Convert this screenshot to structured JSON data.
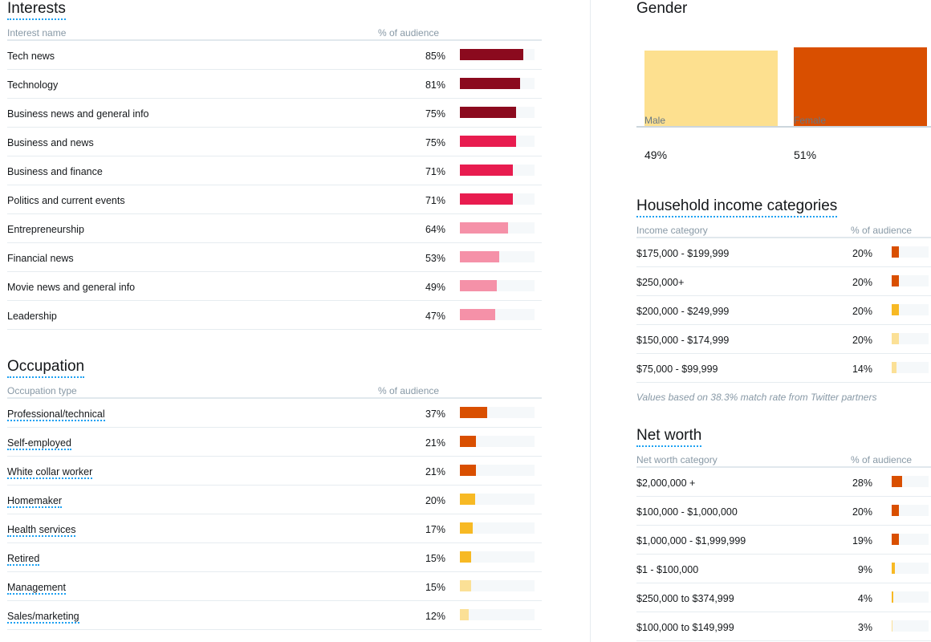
{
  "interests": {
    "title": "Interests",
    "col_name": "Interest name",
    "col_pct": "% of audience",
    "rows": [
      {
        "name": "Tech news",
        "pct_label": "85%",
        "value": 85,
        "color": "#8b0a1e"
      },
      {
        "name": "Technology",
        "pct_label": "81%",
        "value": 81,
        "color": "#8b0a1e"
      },
      {
        "name": "Business news and general info",
        "pct_label": "75%",
        "value": 75,
        "color": "#8b0a1e"
      },
      {
        "name": "Business and news",
        "pct_label": "75%",
        "value": 75,
        "color": "#e81c4f"
      },
      {
        "name": "Business and finance",
        "pct_label": "71%",
        "value": 71,
        "color": "#e81c4f"
      },
      {
        "name": "Politics and current events",
        "pct_label": "71%",
        "value": 71,
        "color": "#e81c4f"
      },
      {
        "name": "Entrepreneurship",
        "pct_label": "64%",
        "value": 64,
        "color": "#f591a8"
      },
      {
        "name": "Financial news",
        "pct_label": "53%",
        "value": 53,
        "color": "#f591a8"
      },
      {
        "name": "Movie news and general info",
        "pct_label": "49%",
        "value": 49,
        "color": "#f591a8"
      },
      {
        "name": "Leadership",
        "pct_label": "47%",
        "value": 47,
        "color": "#f591a8"
      }
    ]
  },
  "occupation": {
    "title": "Occupation",
    "col_name": "Occupation type",
    "col_pct": "% of audience",
    "rows": [
      {
        "name": "Professional/technical",
        "pct_label": "37%",
        "value": 37,
        "color": "#d94f00"
      },
      {
        "name": "Self-employed",
        "pct_label": "21%",
        "value": 21,
        "color": "#d94f00"
      },
      {
        "name": "White collar worker",
        "pct_label": "21%",
        "value": 21,
        "color": "#d94f00"
      },
      {
        "name": "Homemaker",
        "pct_label": "20%",
        "value": 20,
        "color": "#f7b924"
      },
      {
        "name": "Health services",
        "pct_label": "17%",
        "value": 17,
        "color": "#f7b924"
      },
      {
        "name": "Retired",
        "pct_label": "15%",
        "value": 15,
        "color": "#f7b924"
      },
      {
        "name": "Management",
        "pct_label": "15%",
        "value": 15,
        "color": "#fbe096"
      },
      {
        "name": "Sales/marketing",
        "pct_label": "12%",
        "value": 12,
        "color": "#fbe096"
      }
    ]
  },
  "gender": {
    "title": "Gender",
    "male": {
      "label": "Male",
      "pct_label": "49%",
      "value": 49,
      "color": "#fde08f"
    },
    "female": {
      "label": "Female",
      "pct_label": "51%",
      "value": 51,
      "color": "#d94f00"
    }
  },
  "income": {
    "title": "Household income categories",
    "col_name": "Income category",
    "col_pct": "% of audience",
    "rows": [
      {
        "name": "$175,000 - $199,999",
        "pct_label": "20%",
        "value": 20,
        "color": "#d94f00"
      },
      {
        "name": "$250,000+",
        "pct_label": "20%",
        "value": 20,
        "color": "#d94f00"
      },
      {
        "name": "$200,000 - $249,999",
        "pct_label": "20%",
        "value": 20,
        "color": "#f7b924"
      },
      {
        "name": "$150,000 - $174,999",
        "pct_label": "20%",
        "value": 20,
        "color": "#fbe096"
      },
      {
        "name": "$75,000 - $99,999",
        "pct_label": "14%",
        "value": 14,
        "color": "#fbe096"
      }
    ],
    "note": "Values based on 38.3% match rate from Twitter partners"
  },
  "networth": {
    "title": "Net worth",
    "col_name": "Net worth category",
    "col_pct": "% of audience",
    "rows": [
      {
        "name": "$2,000,000 +",
        "pct_label": "28%",
        "value": 28,
        "color": "#d94f00"
      },
      {
        "name": "$100,000 - $1,000,000",
        "pct_label": "20%",
        "value": 20,
        "color": "#d94f00"
      },
      {
        "name": "$1,000,000 - $1,999,999",
        "pct_label": "19%",
        "value": 19,
        "color": "#d94f00"
      },
      {
        "name": "$1 - $100,000",
        "pct_label": "9%",
        "value": 9,
        "color": "#f7b924"
      },
      {
        "name": "$250,000 to $374,999",
        "pct_label": "4%",
        "value": 4,
        "color": "#f7b924"
      },
      {
        "name": "$100,000 to $149,999",
        "pct_label": "3%",
        "value": 3,
        "color": "#fbe096"
      }
    ]
  }
}
